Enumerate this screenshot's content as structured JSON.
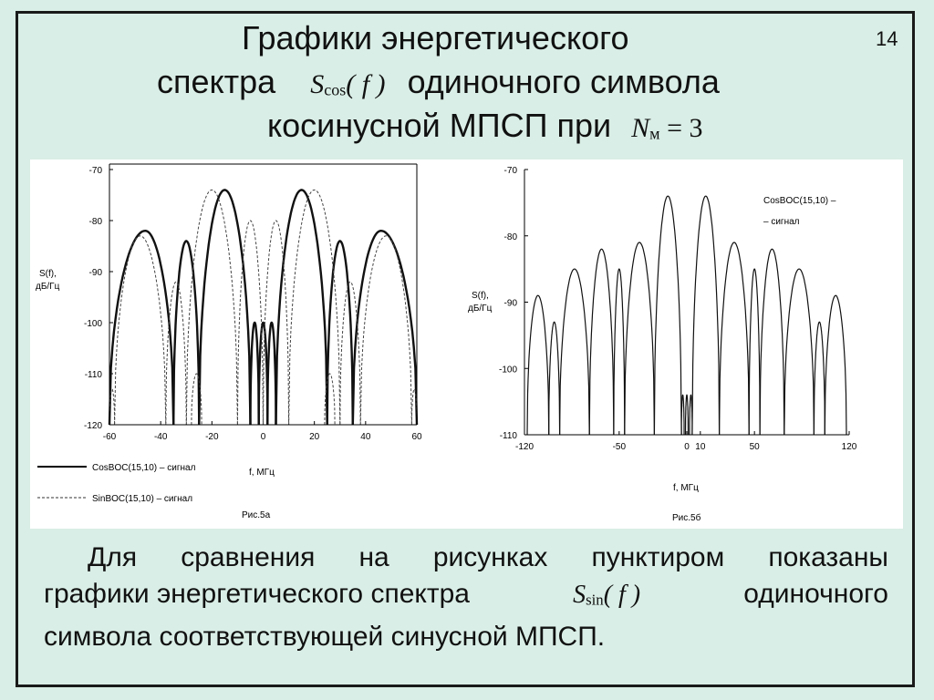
{
  "slide": {
    "number": "14",
    "title": {
      "line1": "Графики энергетического",
      "line2_pre": "спектра",
      "line2_math": {
        "symbol": "S",
        "subscript": "cos",
        "arg": "( f )"
      },
      "line2_post": "одиночного символа",
      "line3_pre": "косинусной МПСП при",
      "line3_math": {
        "symbol": "N",
        "subscript": "м",
        "rhs": "= 3"
      }
    },
    "caption": {
      "line1": "Для сравнения на рисунках пунктиром показаны",
      "line2_pre": "графики энергетического спектра",
      "line2_math": {
        "symbol": "S",
        "subscript": "sin",
        "arg": "( f )"
      },
      "line2_post": "одиночного",
      "line3": "символа соответствующей синусной МПСП."
    }
  },
  "chart_data": [
    {
      "type": "line",
      "title": "",
      "figure_label": "Рис.5а",
      "xlabel": "f, МГц",
      "ylabel_line1": "S(f),",
      "ylabel_line2": "дБ/Гц",
      "xlim": [
        -60,
        60
      ],
      "ylim": [
        -120,
        -70
      ],
      "x_ticks": [
        -60,
        -40,
        -20,
        0,
        20,
        40,
        60
      ],
      "y_ticks": [
        -70,
        -80,
        -90,
        -100,
        -110,
        -120
      ],
      "grid": false,
      "legend_placement": "below",
      "series": [
        {
          "name": "CosBOC(15,10) – сигнал",
          "style": "solid",
          "lobes": [
            {
              "from": -60,
              "to": -35,
              "peak_x": -46,
              "peak": -82
            },
            {
              "from": -35,
              "to": -25,
              "peak_x": -30,
              "peak": -84
            },
            {
              "from": -25,
              "to": -5,
              "peak_x": -15,
              "peak": -74
            },
            {
              "from": -5,
              "to": -1.7,
              "peak_x": -3.3,
              "peak": -100
            },
            {
              "from": -1.7,
              "to": 1.7,
              "peak_x": 0,
              "peak": -100
            },
            {
              "from": 1.7,
              "to": 5,
              "peak_x": 3.3,
              "peak": -100
            },
            {
              "from": 5,
              "to": 25,
              "peak_x": 15,
              "peak": -74
            },
            {
              "from": 25,
              "to": 35,
              "peak_x": 30,
              "peak": -84
            },
            {
              "from": 35,
              "to": 60,
              "peak_x": 46,
              "peak": -82
            }
          ]
        },
        {
          "name": "SinBOC(15,10) – сигнал",
          "style": "dashed",
          "lobes": [
            {
              "from": -60,
              "to": -58,
              "peak_x": -59,
              "peak": -113
            },
            {
              "from": -58,
              "to": -38,
              "peak_x": -48,
              "peak": -83
            },
            {
              "from": -38,
              "to": -30,
              "peak_x": -34,
              "peak": -92
            },
            {
              "from": -30,
              "to": -10,
              "peak_x": -20,
              "peak": -74
            },
            {
              "from": -10,
              "to": 0,
              "peak_x": -5,
              "peak": -80
            },
            {
              "from": 0,
              "to": 10,
              "peak_x": 5,
              "peak": -80
            },
            {
              "from": 10,
              "to": 30,
              "peak_x": 20,
              "peak": -74
            },
            {
              "from": 30,
              "to": 38,
              "peak_x": 34,
              "peak": -92
            },
            {
              "from": 38,
              "to": 58,
              "peak_x": 48,
              "peak": -83
            },
            {
              "from": 58,
              "to": 60,
              "peak_x": 59,
              "peak": -113
            },
            {
              "from": -28,
              "to": -24,
              "peak_x": -26,
              "peak": -110
            },
            {
              "from": 24,
              "to": 28,
              "peak_x": 26,
              "peak": -110
            }
          ]
        }
      ]
    },
    {
      "type": "line",
      "title": "",
      "figure_label": "Рис.5б",
      "xlabel": "f, МГц",
      "ylabel_line1": "S(f),",
      "ylabel_line2": "дБ/Гц",
      "xlim": [
        -120,
        120
      ],
      "ylim": [
        -110,
        -70
      ],
      "x_ticks": [
        -120,
        -50,
        0,
        10,
        50,
        120
      ],
      "y_ticks": [
        -70,
        -80,
        -90,
        -100,
        -110
      ],
      "grid": false,
      "annotation_line1": "CosBOC(15,10) –",
      "annotation_line2": "– сигнал",
      "series": [
        {
          "name": "CosBOC(15,10) – сигнал",
          "style": "solid",
          "lobes": [
            {
              "from": -118,
              "to": -102,
              "peak_x": -110,
              "peak": -89
            },
            {
              "from": -102,
              "to": -94,
              "peak_x": -98,
              "peak": -93
            },
            {
              "from": -94,
              "to": -72,
              "peak_x": -83,
              "peak": -85
            },
            {
              "from": -72,
              "to": -54,
              "peak_x": -63,
              "peak": -82
            },
            {
              "from": -54,
              "to": -46,
              "peak_x": -50,
              "peak": -85
            },
            {
              "from": -46,
              "to": -24,
              "peak_x": -35,
              "peak": -81
            },
            {
              "from": -24,
              "to": -4,
              "peak_x": -14,
              "peak": -74
            },
            {
              "from": -4,
              "to": -2,
              "peak_x": -3,
              "peak": -104
            },
            {
              "from": -1,
              "to": 1,
              "peak_x": 0,
              "peak": -104
            },
            {
              "from": 2,
              "to": 4,
              "peak_x": 3,
              "peak": -104
            },
            {
              "from": 4,
              "to": 24,
              "peak_x": 14,
              "peak": -74
            },
            {
              "from": 24,
              "to": 46,
              "peak_x": 35,
              "peak": -81
            },
            {
              "from": 46,
              "to": 54,
              "peak_x": 50,
              "peak": -85
            },
            {
              "from": 54,
              "to": 72,
              "peak_x": 63,
              "peak": -82
            },
            {
              "from": 72,
              "to": 94,
              "peak_x": 83,
              "peak": -85
            },
            {
              "from": 94,
              "to": 102,
              "peak_x": 98,
              "peak": -93
            },
            {
              "from": 102,
              "to": 118,
              "peak_x": 110,
              "peak": -89
            }
          ]
        }
      ]
    }
  ]
}
